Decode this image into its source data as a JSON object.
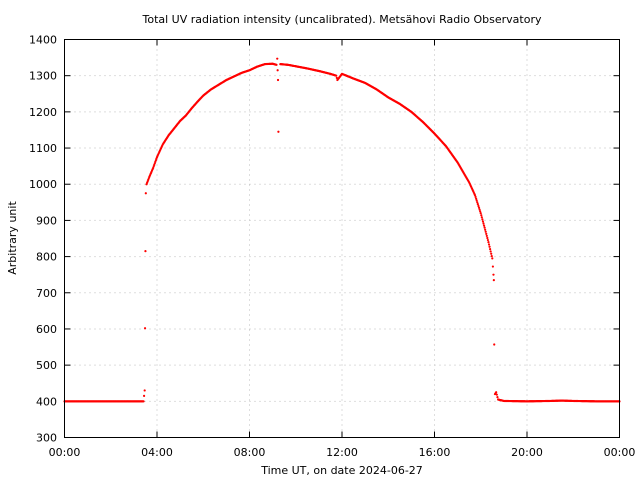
{
  "chart_data": {
    "type": "scatter",
    "title": "Total UV radiation intensity (uncalibrated). Metsähovi Radio Observatory",
    "xlabel": "Time UT, on date 2024-06-27",
    "ylabel": "Arbitrary unit",
    "xlim": [
      "00:00",
      "24:00"
    ],
    "ylim": [
      300,
      1400
    ],
    "x_unit": "time of day (UT)",
    "xticks": [
      "00:00",
      "04:00",
      "08:00",
      "12:00",
      "16:00",
      "20:00",
      "00:00"
    ],
    "yticks": [
      300,
      400,
      500,
      600,
      700,
      800,
      900,
      1000,
      1100,
      1200,
      1300,
      1400
    ],
    "grid": true,
    "legend": "none",
    "marker_color": "#ff0000",
    "series": [
      {
        "points": [
          [
            "00:00",
            400
          ],
          [
            "01:00",
            400
          ],
          [
            "02:00",
            400
          ],
          [
            "03:00",
            400
          ],
          [
            "03:25",
            400
          ],
          [
            "03:28",
            430
          ],
          [
            "03:29",
            602
          ],
          [
            "03:30",
            815
          ],
          [
            "03:31",
            975
          ],
          [
            "03:33",
            1000
          ],
          [
            "03:40",
            1020
          ],
          [
            "03:50",
            1045
          ],
          [
            "04:00",
            1075
          ],
          [
            "04:15",
            1110
          ],
          [
            "04:30",
            1135
          ],
          [
            "04:45",
            1155
          ],
          [
            "05:00",
            1175
          ],
          [
            "05:15",
            1190
          ],
          [
            "05:30",
            1210
          ],
          [
            "05:45",
            1228
          ],
          [
            "06:00",
            1245
          ],
          [
            "06:20",
            1262
          ],
          [
            "06:40",
            1275
          ],
          [
            "07:00",
            1288
          ],
          [
            "07:20",
            1298
          ],
          [
            "07:40",
            1308
          ],
          [
            "08:00",
            1315
          ],
          [
            "08:20",
            1325
          ],
          [
            "08:40",
            1332
          ],
          [
            "09:00",
            1333
          ],
          [
            "09:10",
            1330
          ],
          [
            "09:12",
            1347
          ],
          [
            "09:13",
            1315
          ],
          [
            "09:14",
            1288
          ],
          [
            "09:15",
            1145
          ],
          [
            "09:20",
            1332
          ],
          [
            "09:40",
            1330
          ],
          [
            "10:00",
            1326
          ],
          [
            "10:30",
            1320
          ],
          [
            "11:00",
            1313
          ],
          [
            "11:30",
            1305
          ],
          [
            "11:45",
            1300
          ],
          [
            "11:48",
            1288
          ],
          [
            "12:00",
            1305
          ],
          [
            "12:30",
            1292
          ],
          [
            "13:00",
            1280
          ],
          [
            "13:30",
            1262
          ],
          [
            "14:00",
            1240
          ],
          [
            "14:30",
            1222
          ],
          [
            "15:00",
            1200
          ],
          [
            "15:30",
            1172
          ],
          [
            "16:00",
            1140
          ],
          [
            "16:30",
            1105
          ],
          [
            "17:00",
            1060
          ],
          [
            "17:30",
            1005
          ],
          [
            "17:45",
            970
          ],
          [
            "18:00",
            920
          ],
          [
            "18:10",
            880
          ],
          [
            "18:20",
            840
          ],
          [
            "18:30",
            795
          ],
          [
            "18:33",
            750
          ],
          [
            "18:34",
            735
          ],
          [
            "18:35",
            557
          ],
          [
            "18:37",
            420
          ],
          [
            "18:40",
            425
          ],
          [
            "18:45",
            405
          ],
          [
            "19:00",
            401
          ],
          [
            "20:00",
            400
          ],
          [
            "21:00",
            401
          ],
          [
            "21:30",
            402
          ],
          [
            "22:00",
            401
          ],
          [
            "23:00",
            400
          ],
          [
            "24:00",
            400
          ]
        ]
      }
    ]
  }
}
